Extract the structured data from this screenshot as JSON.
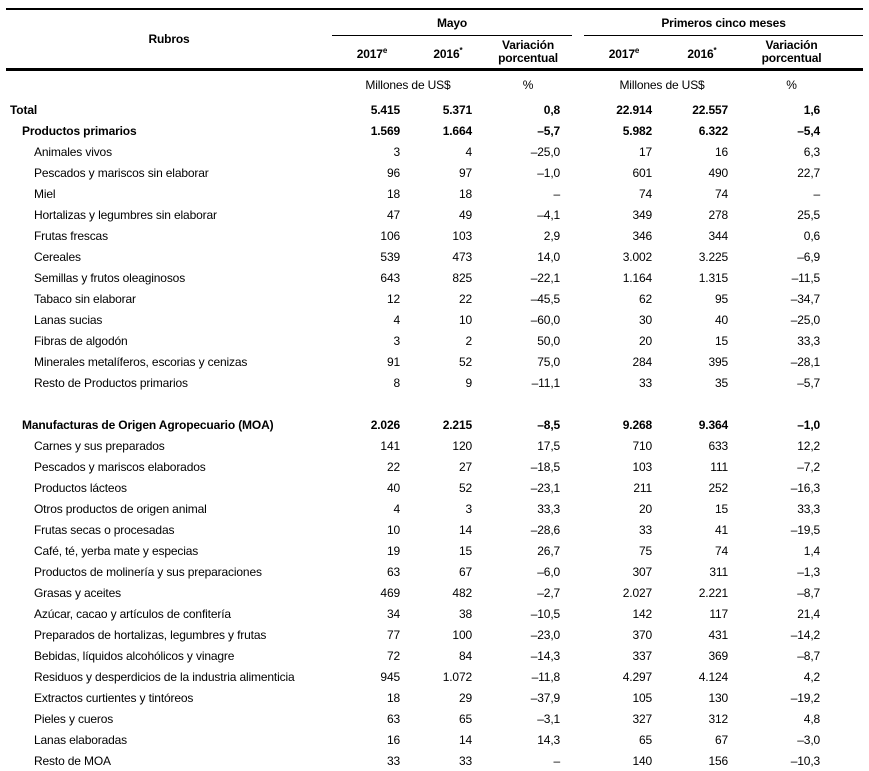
{
  "colors": {
    "background": "#ffffff",
    "text": "#000000",
    "rule": "#000000"
  },
  "table": {
    "corner_label": "Rubros",
    "groups": [
      {
        "label": "Mayo"
      },
      {
        "label": "Primeros cinco meses"
      }
    ],
    "year_headers": [
      {
        "label": "2017",
        "sup": "e"
      },
      {
        "label": "2016",
        "sup": "*"
      }
    ],
    "var_header": "Variación porcentual",
    "units": {
      "millions": "Millones de US$",
      "percent": "%"
    },
    "rows": [
      {
        "label": "Total",
        "level": 0,
        "bold": true,
        "values": [
          "5.415",
          "5.371",
          "0,8",
          "22.914",
          "22.557",
          "1,6"
        ]
      },
      {
        "label": "Productos primarios",
        "level": 1,
        "bold": true,
        "values": [
          "1.569",
          "1.664",
          "–5,7",
          "5.982",
          "6.322",
          "–5,4"
        ]
      },
      {
        "label": "Animales vivos",
        "level": 2,
        "bold": false,
        "values": [
          "3",
          "4",
          "–25,0",
          "17",
          "16",
          "6,3"
        ]
      },
      {
        "label": "Pescados y mariscos sin elaborar",
        "level": 2,
        "bold": false,
        "values": [
          "96",
          "97",
          "–1,0",
          "601",
          "490",
          "22,7"
        ]
      },
      {
        "label": "Miel",
        "level": 2,
        "bold": false,
        "values": [
          "18",
          "18",
          "–",
          "74",
          "74",
          "–"
        ]
      },
      {
        "label": "Hortalizas y legumbres sin elaborar",
        "level": 2,
        "bold": false,
        "values": [
          "47",
          "49",
          "–4,1",
          "349",
          "278",
          "25,5"
        ]
      },
      {
        "label": "Frutas frescas",
        "level": 2,
        "bold": false,
        "values": [
          "106",
          "103",
          "2,9",
          "346",
          "344",
          "0,6"
        ]
      },
      {
        "label": "Cereales",
        "level": 2,
        "bold": false,
        "values": [
          "539",
          "473",
          "14,0",
          "3.002",
          "3.225",
          "–6,9"
        ]
      },
      {
        "label": "Semillas y frutos oleaginosos",
        "level": 2,
        "bold": false,
        "values": [
          "643",
          "825",
          "–22,1",
          "1.164",
          "1.315",
          "–11,5"
        ]
      },
      {
        "label": "Tabaco sin elaborar",
        "level": 2,
        "bold": false,
        "values": [
          "12",
          "22",
          "–45,5",
          "62",
          "95",
          "–34,7"
        ]
      },
      {
        "label": "Lanas sucias",
        "level": 2,
        "bold": false,
        "values": [
          "4",
          "10",
          "–60,0",
          "30",
          "40",
          "–25,0"
        ]
      },
      {
        "label": "Fibras de algodón",
        "level": 2,
        "bold": false,
        "values": [
          "3",
          "2",
          "50,0",
          "20",
          "15",
          "33,3"
        ]
      },
      {
        "label": "Minerales metalíferos, escorias y cenizas",
        "level": 2,
        "bold": false,
        "values": [
          "91",
          "52",
          "75,0",
          "284",
          "395",
          "–28,1"
        ]
      },
      {
        "label": "Resto de Productos primarios",
        "level": 2,
        "bold": false,
        "values": [
          "8",
          "9",
          "–11,1",
          "33",
          "35",
          "–5,7"
        ]
      },
      {
        "spacer": true
      },
      {
        "label": "Manufacturas de Origen Agropecuario (MOA)",
        "level": 1,
        "bold": true,
        "values": [
          "2.026",
          "2.215",
          "–8,5",
          "9.268",
          "9.364",
          "–1,0"
        ]
      },
      {
        "label": "Carnes y sus preparados",
        "level": 2,
        "bold": false,
        "values": [
          "141",
          "120",
          "17,5",
          "710",
          "633",
          "12,2"
        ]
      },
      {
        "label": "Pescados y mariscos elaborados",
        "level": 2,
        "bold": false,
        "values": [
          "22",
          "27",
          "–18,5",
          "103",
          "111",
          "–7,2"
        ]
      },
      {
        "label": "Productos lácteos",
        "level": 2,
        "bold": false,
        "values": [
          "40",
          "52",
          "–23,1",
          "211",
          "252",
          "–16,3"
        ]
      },
      {
        "label": "Otros productos de origen animal",
        "level": 2,
        "bold": false,
        "values": [
          "4",
          "3",
          "33,3",
          "20",
          "15",
          "33,3"
        ]
      },
      {
        "label": "Frutas secas o procesadas",
        "level": 2,
        "bold": false,
        "values": [
          "10",
          "14",
          "–28,6",
          "33",
          "41",
          "–19,5"
        ]
      },
      {
        "label": "Café, té, yerba mate y especias",
        "level": 2,
        "bold": false,
        "values": [
          "19",
          "15",
          "26,7",
          "75",
          "74",
          "1,4"
        ]
      },
      {
        "label": "Productos de molinería y sus preparaciones",
        "level": 2,
        "bold": false,
        "values": [
          "63",
          "67",
          "–6,0",
          "307",
          "311",
          "–1,3"
        ]
      },
      {
        "label": "Grasas y aceites",
        "level": 2,
        "bold": false,
        "values": [
          "469",
          "482",
          "–2,7",
          "2.027",
          "2.221",
          "–8,7"
        ]
      },
      {
        "label": "Azúcar, cacao y artículos de confitería",
        "level": 2,
        "bold": false,
        "values": [
          "34",
          "38",
          "–10,5",
          "142",
          "117",
          "21,4"
        ]
      },
      {
        "label": "Preparados de hortalizas, legumbres y frutas",
        "level": 2,
        "bold": false,
        "values": [
          "77",
          "100",
          "–23,0",
          "370",
          "431",
          "–14,2"
        ]
      },
      {
        "label": "Bebidas, líquidos alcohólicos y vinagre",
        "level": 2,
        "bold": false,
        "values": [
          "72",
          "84",
          "–14,3",
          "337",
          "369",
          "–8,7"
        ]
      },
      {
        "label": "Residuos y desperdicios de la industria alimenticia",
        "level": 2,
        "bold": false,
        "values": [
          "945",
          "1.072",
          "–11,8",
          "4.297",
          "4.124",
          "4,2"
        ]
      },
      {
        "label": "Extractos curtientes y tintóreos",
        "level": 2,
        "bold": false,
        "values": [
          "18",
          "29",
          "–37,9",
          "105",
          "130",
          "–19,2"
        ]
      },
      {
        "label": "Pieles y cueros",
        "level": 2,
        "bold": false,
        "values": [
          "63",
          "65",
          "–3,1",
          "327",
          "312",
          "4,8"
        ]
      },
      {
        "label": "Lanas elaboradas",
        "level": 2,
        "bold": false,
        "values": [
          "16",
          "14",
          "14,3",
          "65",
          "67",
          "–3,0"
        ]
      },
      {
        "label": "Resto de MOA",
        "level": 2,
        "bold": false,
        "values": [
          "33",
          "33",
          "–",
          "140",
          "156",
          "–10,3"
        ]
      }
    ]
  }
}
